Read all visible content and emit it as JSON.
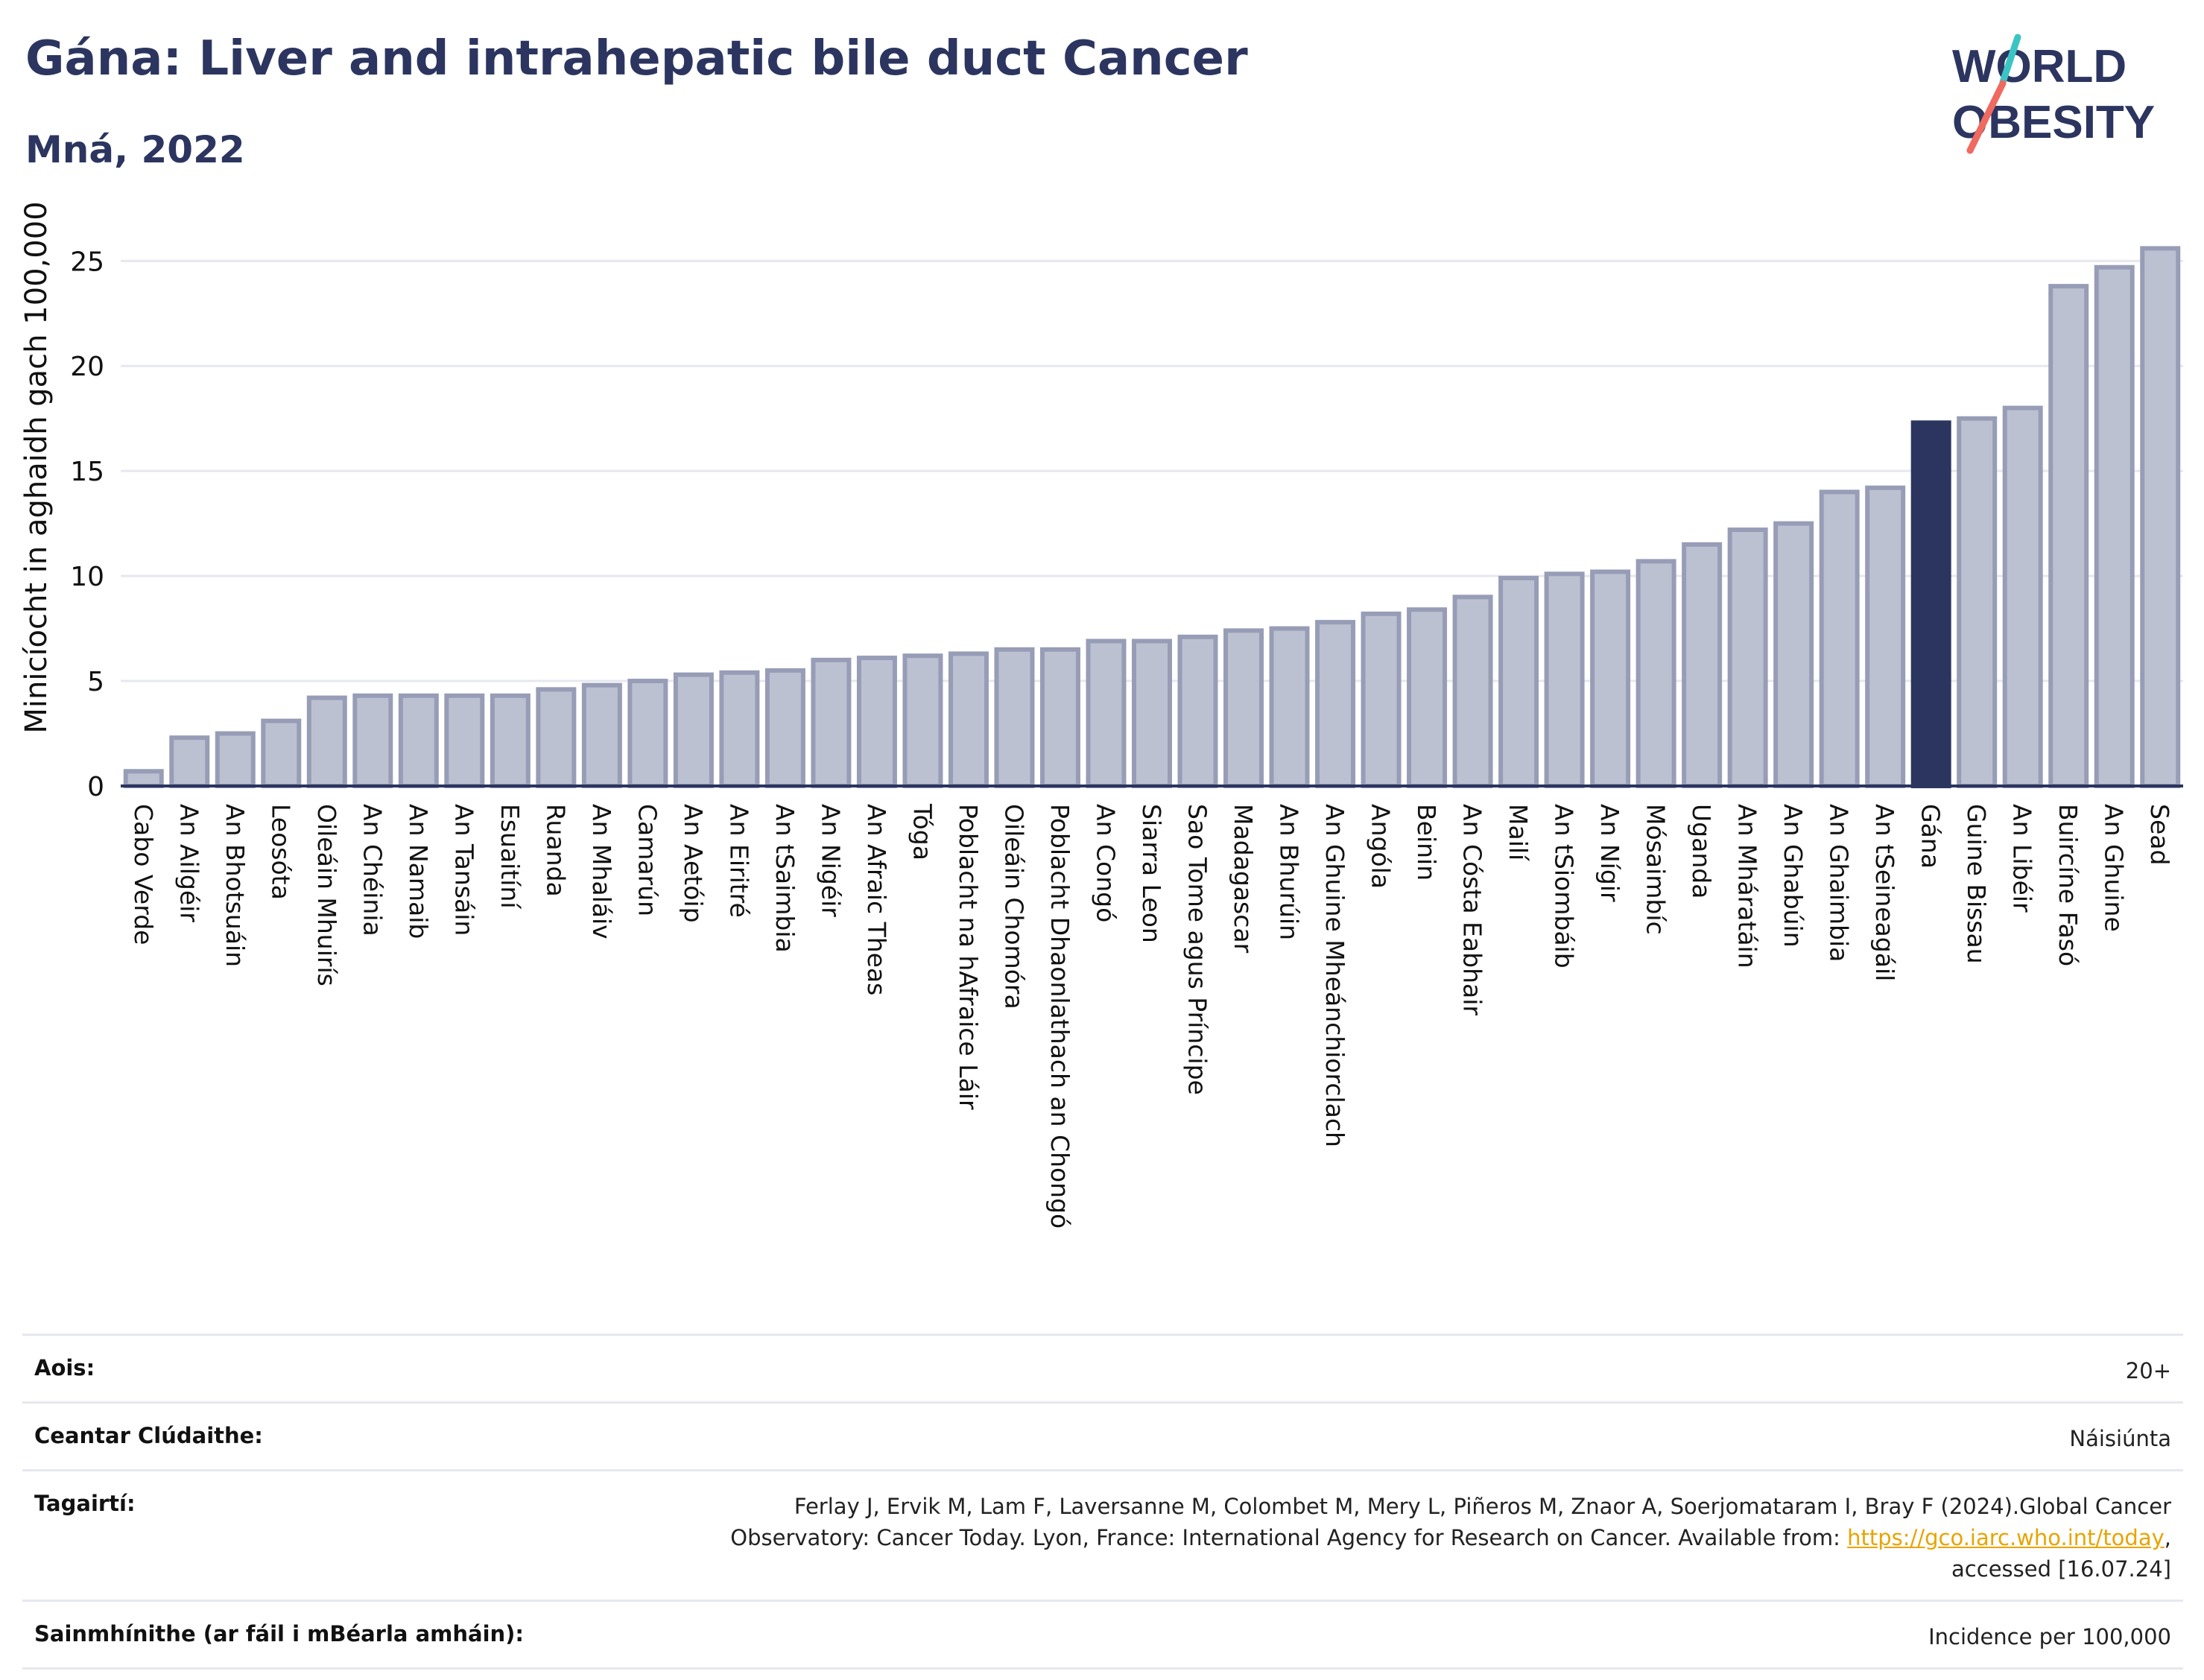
{
  "header": {
    "title": "Gána: Liver and intrahepatic bile duct Cancer",
    "subtitle": "Mná, 2022"
  },
  "logo": {
    "line1": "WORLD",
    "line2": "OBESITY"
  },
  "colors": {
    "bar": "#bcc1d1",
    "bar_stroke": "#979db6",
    "highlight": "#2b355f",
    "grid": "#e6e8ee",
    "axis": "#2b355f"
  },
  "chart_data": {
    "type": "bar",
    "ylabel": "Minicíocht in aghaidh gach 100,000",
    "ylim": [
      0,
      26.5
    ],
    "yticks": [
      0,
      5,
      10,
      15,
      20,
      25
    ],
    "highlight": "Gána",
    "categories": [
      "Cabo Verde",
      "An Ailgéir",
      "An Bhotsuáin",
      "Leosóta",
      "Oileáin Mhuirís",
      "An Chéinia",
      "An Namaib",
      "An Tansáin",
      "Esuaitíní",
      "Ruanda",
      "An Mhaláiv",
      "Camarún",
      "An Aetóip",
      "An Eiritré",
      "An tSaimbia",
      "An Nigéir",
      "An Afraic Theas",
      "Tóga",
      "Poblacht na hAfraice Láir",
      "Oileáin Chomóra",
      "Poblacht Dhaonlathach an Chongó",
      "An Congó",
      "Siarra Leon",
      "Sao Tome agus Príncipe",
      "Madagascar",
      "An Bhurúin",
      "An Ghuine Mheánchiorclach",
      "Angóla",
      "Beinin",
      "An Cósta Eabhair",
      "Mailí",
      "An tSiombáib",
      "An Nígir",
      "Mósaimbíc",
      "Uganda",
      "An Mháratáin",
      "An Ghabúin",
      "An Ghaimbia",
      "An tSeineagáil",
      "Gána",
      "Guine Bissau",
      "An Libéir",
      "Buircíne Fasó",
      "An Ghuine",
      "Sead"
    ],
    "values": [
      0.7,
      2.3,
      2.5,
      3.1,
      4.2,
      4.3,
      4.3,
      4.3,
      4.3,
      4.6,
      4.8,
      5.0,
      5.3,
      5.4,
      5.5,
      6.0,
      6.1,
      6.2,
      6.3,
      6.5,
      6.5,
      6.9,
      6.9,
      7.1,
      7.4,
      7.5,
      7.8,
      8.2,
      8.4,
      9.0,
      9.9,
      10.1,
      10.2,
      10.7,
      11.5,
      12.2,
      12.5,
      14.0,
      14.2,
      17.3,
      17.5,
      18.0,
      23.8,
      24.7,
      25.6
    ]
  },
  "meta": [
    {
      "label": "Aois:",
      "value": "20+"
    },
    {
      "label": "Ceantar Clúdaithe:",
      "value": "Náisiúnta"
    },
    {
      "label": "Tagairtí:",
      "value_line1": "Ferlay J, Ervik M, Lam F, Laversanne M, Colombet M, Mery L, Piñeros M, Znaor A, Soerjomataram I, Bray F (2024).Global Cancer",
      "value_line2_pre": "Observatory: Cancer Today. Lyon, France: International Agency for Research on Cancer. Available from: ",
      "link": "https://gco.iarc.who.int/today",
      "value_line2_post": ",",
      "value_line3": "accessed [16.07.24]"
    },
    {
      "label": "Sainmhínithe (ar fáil i mBéarla amháin):",
      "value": "Incidence per 100,000"
    }
  ]
}
